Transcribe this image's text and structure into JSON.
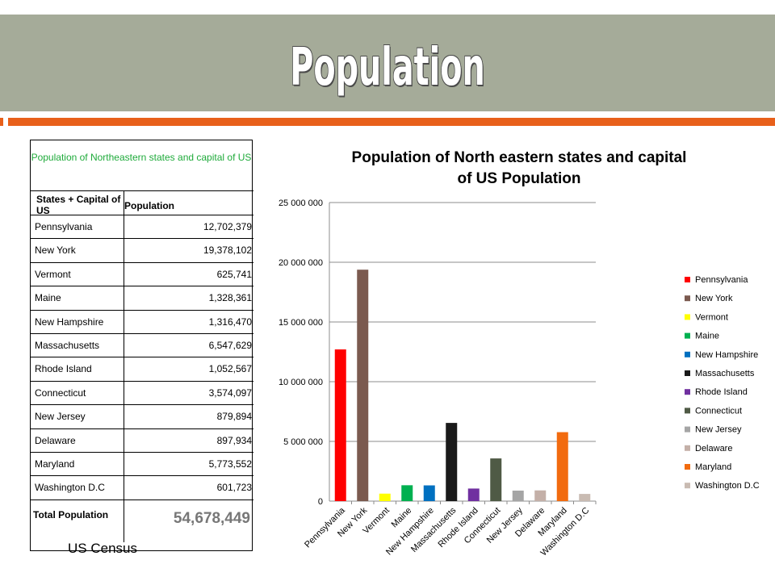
{
  "slide": {
    "title": "Population",
    "source": "US Census"
  },
  "colors": {
    "title_bar": "#a5ab99",
    "accent": "#e8601a",
    "caption": "#1eaa3a"
  },
  "table": {
    "caption": "Population of Northeastern states and capital of US",
    "header_col1": "States + Capital of US",
    "header_col2": "Population",
    "rows": [
      {
        "name": "Pennsylvania",
        "value": "12,702,379"
      },
      {
        "name": "New York",
        "value": "19,378,102"
      },
      {
        "name": "Vermont",
        "value": "625,741"
      },
      {
        "name": "Maine",
        "value": "1,328,361"
      },
      {
        "name": "New Hampshire",
        "value": "1,316,470"
      },
      {
        "name": "Massachusetts",
        "value": "6,547,629"
      },
      {
        "name": "Rhode Island",
        "value": "1,052,567"
      },
      {
        "name": "Connecticut",
        "value": "3,574,097"
      },
      {
        "name": "New Jersey",
        "value": "879,894"
      },
      {
        "name": "Delaware",
        "value": "897,934"
      },
      {
        "name": "Maryland",
        "value": "5,773,552"
      },
      {
        "name": "Washington D.C",
        "value": "601,723"
      }
    ],
    "total_label": "Total Population",
    "total_value": "54,678,449"
  },
  "chart_data": {
    "type": "bar",
    "title": "Population of North eastern states and capital of US Population",
    "categories": [
      "Pennsylvania",
      "New York",
      "Vermont",
      "Maine",
      "New Hampshire",
      "Massachusetts",
      "Rhode Island",
      "Connecticut",
      "New Jersey",
      "Delaware",
      "Maryland",
      "Washington D.C"
    ],
    "values": [
      12702379,
      19378102,
      625741,
      1328361,
      1316470,
      6547629,
      1052567,
      3574097,
      879894,
      897934,
      5773552,
      601723
    ],
    "bar_colors": [
      "#ff0000",
      "#7b5a4f",
      "#ffff00",
      "#00b050",
      "#0070c0",
      "#1a1a1a",
      "#7030a0",
      "#4f5a45",
      "#a5a5a5",
      "#c4b0a8",
      "#f26b0f",
      "#c9bbb2"
    ],
    "ylim": [
      0,
      25000000
    ],
    "yticks": [
      0,
      5000000,
      10000000,
      15000000,
      20000000,
      25000000
    ],
    "ytick_labels": [
      "0",
      "5 000 000",
      "10 000 000",
      "15 000 000",
      "20 000 000",
      "25 000 000"
    ],
    "xlabel": "",
    "ylabel": "",
    "grid": true,
    "legend": {
      "position": "right",
      "entries": [
        "Pennsylvania",
        "New York",
        "Vermont",
        "Maine",
        "New Hampshire",
        "Massachusetts",
        "Rhode Island",
        "Connecticut",
        "New Jersey",
        "Delaware",
        "Maryland",
        "Washington D.C"
      ]
    }
  }
}
